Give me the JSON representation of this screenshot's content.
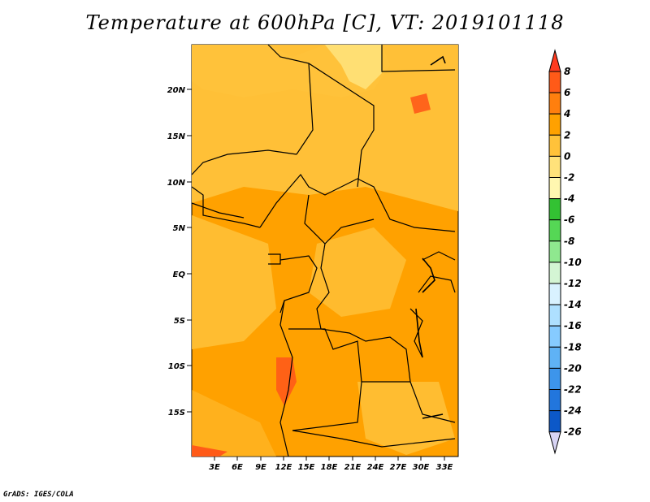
{
  "title": "Temperature at 600hPa [C], VT: 2019101118",
  "credit": "GrADS: IGES/COLA",
  "map": {
    "lat_labels": [
      "20N",
      "15N",
      "10N",
      "5N",
      "EQ",
      "5S",
      "10S",
      "15S"
    ],
    "lon_labels": [
      "3E",
      "6E",
      "9E",
      "12E",
      "15E",
      "18E",
      "21E",
      "24E",
      "27E",
      "30E",
      "33E"
    ]
  },
  "colorbar": {
    "labels": [
      "8",
      "6",
      "4",
      "2",
      "0",
      "-2",
      "-4",
      "-6",
      "-8",
      "-10",
      "-12",
      "-14",
      "-16",
      "-18",
      "-20",
      "-22",
      "-24",
      "-26"
    ],
    "colors": [
      "#ff3b1f",
      "#ff5a18",
      "#ff7f0e",
      "#ffa100",
      "#ffc23a",
      "#ffe27a",
      "#fff7b0",
      "#33c233",
      "#55d755",
      "#8fe88f",
      "#d4f5d4",
      "#d9f2ff",
      "#aee0ff",
      "#86cbff",
      "#5fb2f5",
      "#3d95eb",
      "#2276dd",
      "#0c58c8",
      "#0a3aa4",
      "#0b1f7a",
      "#d8d4f4"
    ]
  }
}
